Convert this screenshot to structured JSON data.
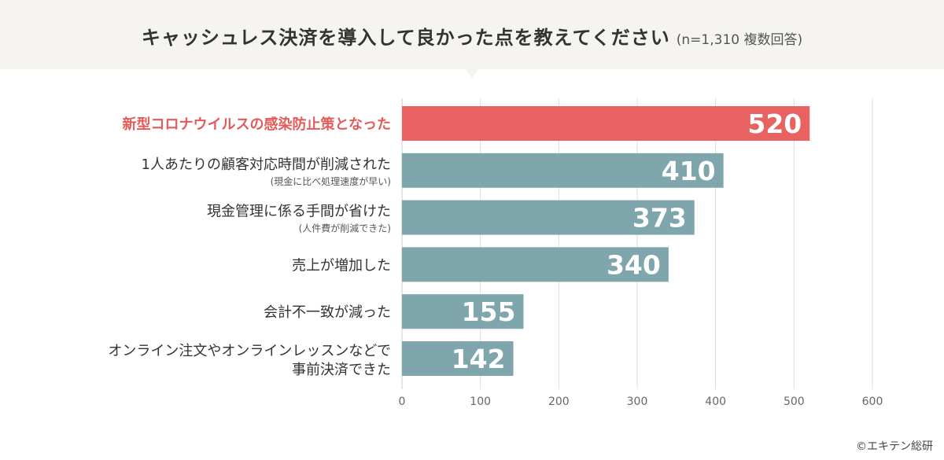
{
  "title": "キャッシュレス決済を導入して良かった点を教えてください",
  "subtitle": "(n=1,310 複数回答)",
  "credit": "©エキテン総研",
  "colors": {
    "highlight": "#e86262",
    "bar": "#7fa6ad",
    "highlight_text": "#e45a5a",
    "grid": "#dddddd"
  },
  "chart_data": {
    "type": "bar",
    "orientation": "horizontal",
    "title": "キャッシュレス決済を導入して良かった点を教えてください",
    "categories": [
      {
        "label": "新型コロナウイルスの感染防止策となった",
        "note": ""
      },
      {
        "label": "1人あたりの顧客対応時間が削減された",
        "note": "(現金に比べ処理速度が早い)"
      },
      {
        "label": "現金管理に係る手間が省けた",
        "note": "(人件費が削減できた)"
      },
      {
        "label": "売上が増加した",
        "note": ""
      },
      {
        "label": "会計不一致が減った",
        "note": ""
      },
      {
        "label": "オンライン注文やオンラインレッスンなどで",
        "label2": "事前決済できた",
        "note": ""
      }
    ],
    "values": [
      520,
      410,
      373,
      340,
      155,
      142
    ],
    "highlight_index": 0,
    "xlim": [
      0,
      600
    ],
    "xticks": [
      0,
      100,
      200,
      300,
      400,
      500,
      600
    ],
    "grid": true
  }
}
